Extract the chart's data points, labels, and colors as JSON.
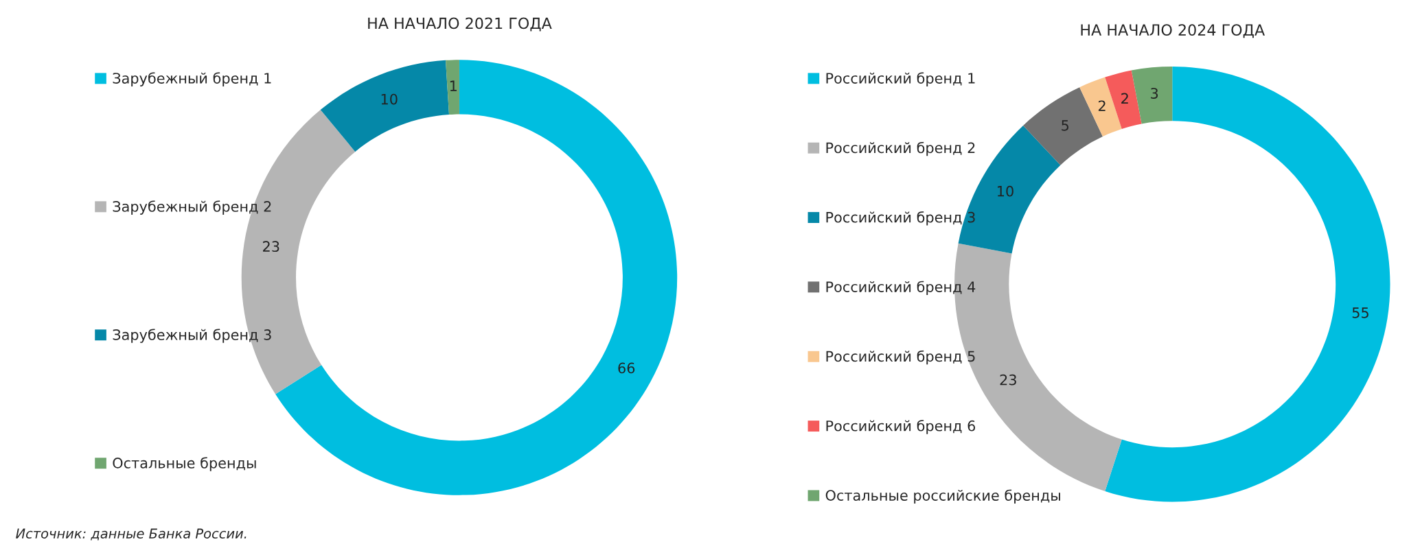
{
  "chart_data": [
    {
      "type": "donut",
      "title": "НА НАЧАЛО 2021 ГОДА",
      "categories": [
        "Зарубежный бренд 1",
        "Зарубежный бренд 2",
        "Зарубежный бренд 3",
        "Остальные бренды"
      ],
      "values": [
        66,
        23,
        10,
        1
      ],
      "colors": [
        "#00bee0",
        "#b5b5b5",
        "#0588a8",
        "#70a670"
      ],
      "data_labels": true,
      "legend": "left",
      "annotations": [
        "Источник: данные Банка России."
      ]
    },
    {
      "type": "donut",
      "title": "НА НАЧАЛО 2024 ГОДА",
      "categories": [
        "Российский бренд 1",
        "Российский бренд 2",
        "Российский бренд 3",
        "Российский бренд 4",
        "Российский бренд 5",
        "Российский бренд 6",
        "Остальные российские бренды"
      ],
      "values": [
        55,
        23,
        10,
        5,
        2,
        2,
        3
      ],
      "colors": [
        "#00bee0",
        "#b5b5b5",
        "#0588a8",
        "#717171",
        "#f9c78f",
        "#f55b5b",
        "#70a670"
      ],
      "data_labels": true,
      "legend": "left"
    }
  ]
}
